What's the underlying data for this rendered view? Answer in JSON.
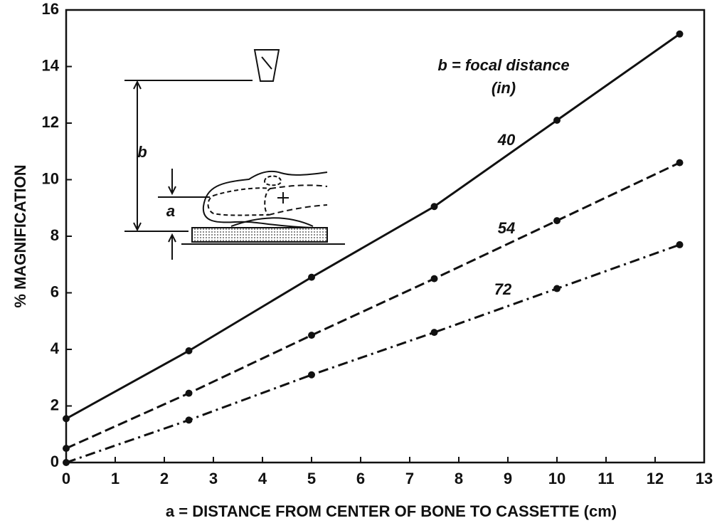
{
  "chart_data": {
    "type": "line",
    "y_label": "% MAGNIFICATION",
    "x_label": "a = DISTANCE FROM CENTER OF BONE TO CASSETTE (cm)",
    "legend_title": "b = focal distance",
    "legend_unit": "(in)",
    "annotations": [
      "b",
      "a"
    ],
    "x": [
      0,
      2.5,
      5,
      7.5,
      10,
      12.5
    ],
    "series": [
      {
        "name": "40",
        "color": "#111111",
        "dash": "solid",
        "values": [
          1.55,
          3.95,
          6.55,
          9.05,
          12.1,
          15.15
        ]
      },
      {
        "name": "54",
        "color": "#111111",
        "dash": "dashed",
        "values": [
          0.5,
          2.45,
          4.5,
          6.5,
          8.55,
          10.6
        ]
      },
      {
        "name": "72",
        "color": "#111111",
        "dash": "dashdot",
        "values": [
          0,
          1.5,
          3.1,
          4.6,
          6.15,
          7.7
        ]
      }
    ],
    "xlim": [
      0,
      13
    ],
    "xticks": [
      0,
      1,
      2,
      3,
      4,
      5,
      6,
      7,
      8,
      9,
      10,
      11,
      12,
      13
    ],
    "ylim": [
      0,
      16
    ],
    "yticks": [
      0,
      2,
      4,
      6,
      8,
      10,
      12,
      14,
      16
    ],
    "grid": false
  }
}
